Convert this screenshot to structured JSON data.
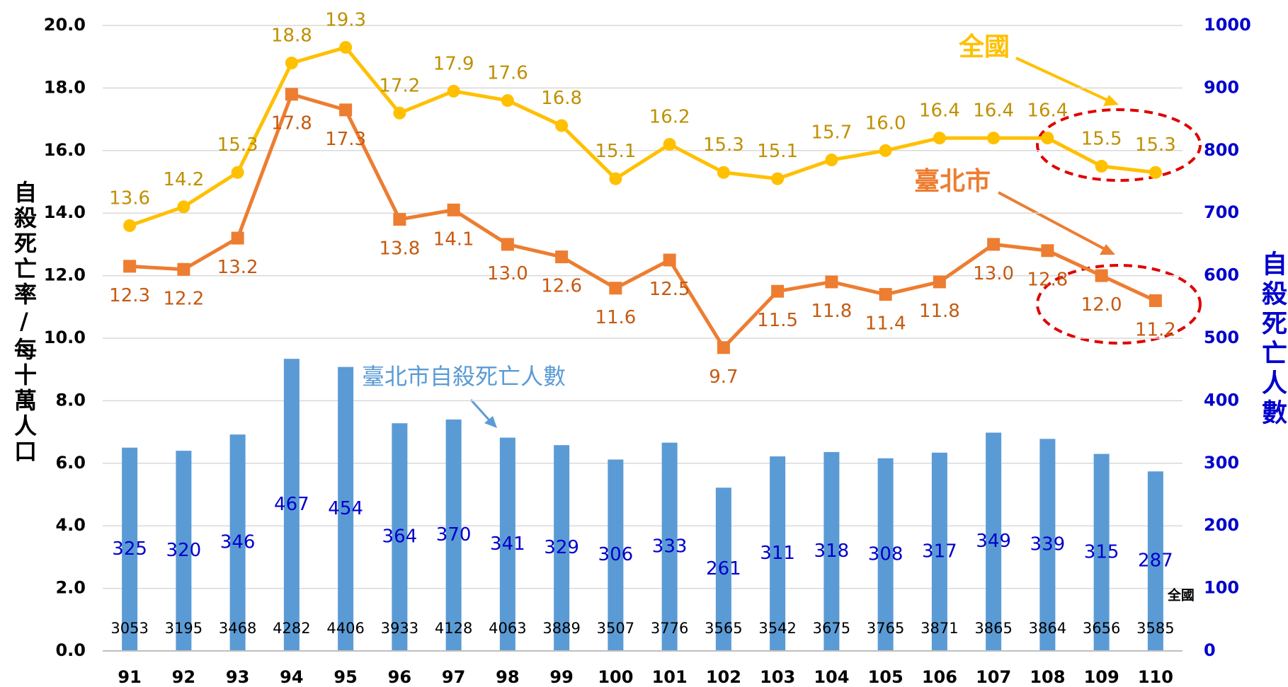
{
  "chart_data": {
    "type": "bar-line",
    "y_label": "自殺死亡率/每十萬人口",
    "y2_label": "自殺死亡人數",
    "annotations": [
      "全國",
      "臺北市",
      "臺北市自殺死亡人數"
    ],
    "categories": [
      "91",
      "92",
      "93",
      "94",
      "95",
      "96",
      "97",
      "98",
      "99",
      "100",
      "101",
      "102",
      "103",
      "104",
      "105",
      "106",
      "107",
      "108",
      "109",
      "110"
    ],
    "ylim": [
      0,
      20
    ],
    "yticks": [
      {
        "value": 0,
        "label": "0.0"
      },
      {
        "value": 2,
        "label": "2.0"
      },
      {
        "value": 4,
        "label": "4.0"
      },
      {
        "value": 6,
        "label": "6.0"
      },
      {
        "value": 8,
        "label": "8.0"
      },
      {
        "value": 10,
        "label": "10.0"
      },
      {
        "value": 12,
        "label": "12.0"
      },
      {
        "value": 14,
        "label": "14.0"
      },
      {
        "value": 16,
        "label": "16.0"
      },
      {
        "value": 18,
        "label": "18.0"
      },
      {
        "value": 20,
        "label": "20.0"
      }
    ],
    "y2lim": [
      0,
      1000
    ],
    "y2ticks": [
      0,
      100,
      200,
      300,
      400,
      500,
      600,
      700,
      800,
      900,
      1000
    ],
    "series": [
      {
        "name": "臺北市自殺死亡人數",
        "type": "bar",
        "axis": "y2",
        "color": "#5b9bd5",
        "values": [
          325,
          320,
          346,
          467,
          454,
          364,
          370,
          341,
          329,
          306,
          333,
          261,
          311,
          318,
          308,
          317,
          349,
          339,
          315,
          287
        ]
      },
      {
        "name": "全國",
        "type": "line",
        "color": "#ffc000",
        "values": [
          13.6,
          14.2,
          15.3,
          18.8,
          19.3,
          17.2,
          17.9,
          17.6,
          16.8,
          15.1,
          16.2,
          15.3,
          15.1,
          15.7,
          16.0,
          16.4,
          16.4,
          16.4,
          15.5,
          15.3
        ],
        "value_labels": [
          "13.6",
          "14.2",
          "15.3",
          "18.8",
          "19.3",
          "17.2",
          "17.9",
          "17.6",
          "16.8",
          "15.1",
          "16.2",
          "15.3",
          "15.1",
          "15.7",
          "16.0",
          "16.4",
          "16.4",
          "16.4",
          "15.5",
          "15.3"
        ]
      },
      {
        "name": "臺北市",
        "type": "line",
        "color": "#ed7d31",
        "values": [
          12.3,
          12.2,
          13.2,
          17.8,
          17.3,
          13.8,
          14.1,
          13.0,
          12.6,
          11.6,
          12.5,
          9.7,
          11.5,
          11.8,
          11.4,
          11.8,
          13.0,
          12.8,
          12.0,
          11.2
        ],
        "value_labels": [
          "12.3",
          "12.2",
          "13.2",
          "17.8",
          "17.3",
          "13.8",
          "14.1",
          "13.0",
          "12.6",
          "11.6",
          "12.5",
          "9.7",
          "11.5",
          "11.8",
          "11.4",
          "11.8",
          "13.0",
          "12.8",
          "12.0",
          "11.2"
        ]
      }
    ],
    "national_deaths": {
      "name": "全國",
      "values": [
        3053,
        3195,
        3468,
        4282,
        4406,
        3933,
        4128,
        4063,
        3889,
        3507,
        3776,
        3565,
        3542,
        3675,
        3765,
        3871,
        3865,
        3864,
        3656,
        3585
      ]
    }
  }
}
